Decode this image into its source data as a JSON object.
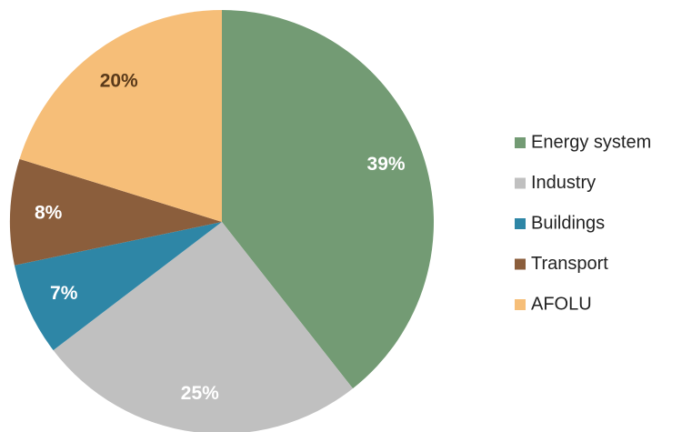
{
  "chart_data": {
    "type": "pie",
    "categories": [
      "Energy system",
      "Industry",
      "Buildings",
      "Transport",
      "AFOLU"
    ],
    "values": [
      39,
      25,
      7,
      8,
      20
    ],
    "value_labels": [
      "39%",
      "25%",
      "7%",
      "8%",
      "20%"
    ],
    "colors": [
      "#739b74",
      "#c0c0c0",
      "#2e86a6",
      "#8b5e3c",
      "#f6be78"
    ],
    "label_colors": [
      "#ffffff",
      "#ffffff",
      "#ffffff",
      "#ffffff",
      "#5a3a1a"
    ],
    "legend": "right"
  }
}
